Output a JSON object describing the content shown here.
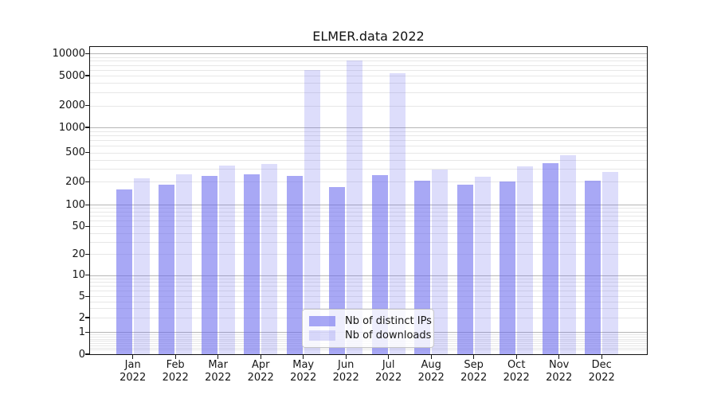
{
  "title": "ELMER.data 2022",
  "colors": {
    "distinct_ips": "rgba(102,102,238,0.57)",
    "downloads": "rgba(102,102,238,0.22)",
    "major_grid": "#b6b6b6",
    "minor_grid": "#e7e7e7",
    "spine": "#111111"
  },
  "legend": {
    "items": [
      {
        "label": "Nb of distinct IPs",
        "color_key": "distinct_ips"
      },
      {
        "label": "Nb of downloads",
        "color_key": "downloads"
      }
    ]
  },
  "chart_data": {
    "type": "bar",
    "title": "ELMER.data 2022",
    "categories": [
      "Jan",
      "Feb",
      "Mar",
      "Apr",
      "May",
      "Jun",
      "Jul",
      "Aug",
      "Sep",
      "Oct",
      "Nov",
      "Dec"
    ],
    "category_year": "2022",
    "series": [
      {
        "name": "Nb of distinct IPs",
        "values": [
          160,
          185,
          240,
          255,
          240,
          170,
          245,
          205,
          185,
          200,
          360,
          205
        ]
      },
      {
        "name": "Nb of downloads",
        "values": [
          220,
          250,
          330,
          350,
          6000,
          8000,
          5400,
          290,
          235,
          325,
          465,
          270
        ]
      }
    ],
    "yscale": "symlog",
    "y_ticks": [
      0,
      1,
      2,
      5,
      10,
      20,
      50,
      100,
      200,
      500,
      1000,
      2000,
      5000,
      10000
    ],
    "ylim": [
      0,
      12000
    ],
    "xlabel": "",
    "ylabel": "",
    "grid": true,
    "legend_position": "lower center"
  }
}
